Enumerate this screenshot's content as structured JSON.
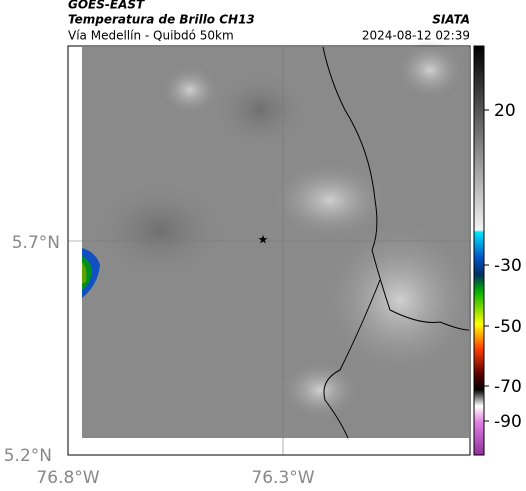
{
  "header": {
    "title": "GOES-EAST",
    "subtitle": "Temperatura de Brillo CH13",
    "source": "SIATA",
    "location": "Vía Medellín - Quibdó 50km",
    "timestamp": "2024-08-12 02:39"
  },
  "map": {
    "lat_labels": [
      "5.7°N",
      "5.2°N"
    ],
    "lon_labels": [
      "76.8°W",
      "76.3°W"
    ]
  },
  "colorbar": {
    "ticks": [
      20,
      -30,
      -50,
      -70,
      -90
    ]
  }
}
